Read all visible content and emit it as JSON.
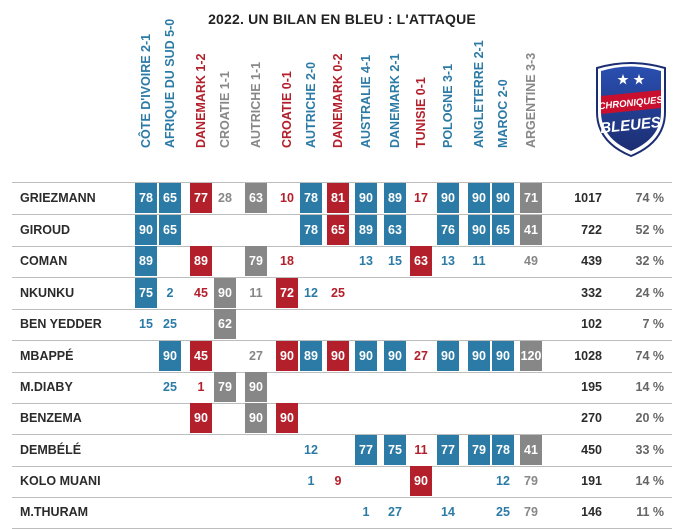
{
  "title": "2022. UN BILAN EN BLEU : L'ATTAQUE",
  "colors": {
    "win": "#2c7ba6",
    "loss": "#b3202b",
    "draw": "#878787",
    "text_dark": "#2b2b2b",
    "pct_text": "#666666"
  },
  "logo": {
    "line1": "CHRONIQUES",
    "line2": "BLEUES",
    "star_icon": "star-icon",
    "colors": {
      "dark": "#1c2e73",
      "mid": "#2a4fb0",
      "red": "#c8102e"
    }
  },
  "chart_data": {
    "type": "table",
    "title": "2022. UN BILAN EN BLEU : L'ATTAQUE",
    "matches": [
      {
        "label": "CÔTE D'IVOIRE 2-1",
        "result": "win"
      },
      {
        "label": "AFRIQUE DU SUD 5-0",
        "result": "win"
      },
      {
        "label": "DANEMARK 1-2",
        "result": "loss"
      },
      {
        "label": "CROATIE 1-1",
        "result": "draw"
      },
      {
        "label": "AUTRICHE 1-1",
        "result": "draw"
      },
      {
        "label": "CROATIE 0-1",
        "result": "loss"
      },
      {
        "label": "AUTRICHE 2-0",
        "result": "win"
      },
      {
        "label": "DANEMARK 0-2",
        "result": "loss"
      },
      {
        "label": "AUSTRALIE 4-1",
        "result": "win"
      },
      {
        "label": "DANEMARK 2-1",
        "result": "win"
      },
      {
        "label": "TUNISIE 0-1",
        "result": "loss"
      },
      {
        "label": "POLOGNE 3-1",
        "result": "win"
      },
      {
        "label": "ANGLETERRE 2-1",
        "result": "win"
      },
      {
        "label": "MAROC 2-0",
        "result": "win"
      },
      {
        "label": "ARGENTINE 3-3",
        "result": "draw"
      }
    ],
    "players": [
      {
        "name": "GRIEZMANN",
        "minutes": [
          78,
          65,
          77,
          28,
          63,
          10,
          78,
          81,
          90,
          89,
          17,
          90,
          90,
          90,
          71
        ],
        "starts": [
          1,
          1,
          1,
          0,
          1,
          0,
          1,
          1,
          1,
          1,
          0,
          1,
          1,
          1,
          1
        ],
        "total": "1017",
        "pct": "74 %"
      },
      {
        "name": "GIROUD",
        "minutes": [
          90,
          65,
          null,
          null,
          null,
          null,
          78,
          65,
          89,
          63,
          null,
          76,
          90,
          65,
          41
        ],
        "starts": [
          1,
          1,
          0,
          0,
          0,
          0,
          1,
          1,
          1,
          1,
          0,
          1,
          1,
          1,
          1
        ],
        "total": "722",
        "pct": "52 %"
      },
      {
        "name": "COMAN",
        "minutes": [
          89,
          null,
          89,
          null,
          79,
          18,
          null,
          null,
          13,
          15,
          63,
          13,
          11,
          null,
          49
        ],
        "starts": [
          1,
          0,
          1,
          0,
          1,
          0,
          0,
          0,
          0,
          0,
          1,
          0,
          0,
          0,
          0
        ],
        "total": "439",
        "pct": "32 %"
      },
      {
        "name": "NKUNKU",
        "minutes": [
          75,
          2,
          45,
          90,
          11,
          72,
          12,
          25,
          null,
          null,
          null,
          null,
          null,
          null,
          null
        ],
        "starts": [
          1,
          0,
          0,
          1,
          0,
          1,
          0,
          0,
          0,
          0,
          0,
          0,
          0,
          0,
          0
        ],
        "total": "332",
        "pct": "24 %"
      },
      {
        "name": "BEN YEDDER",
        "minutes": [
          15,
          25,
          null,
          62,
          null,
          null,
          null,
          null,
          null,
          null,
          null,
          null,
          null,
          null,
          null
        ],
        "starts": [
          0,
          0,
          0,
          1,
          0,
          0,
          0,
          0,
          0,
          0,
          0,
          0,
          0,
          0,
          0
        ],
        "total": "102",
        "pct": "7 %"
      },
      {
        "name": "MBAPPÉ",
        "minutes": [
          null,
          90,
          45,
          null,
          27,
          90,
          89,
          90,
          90,
          90,
          27,
          90,
          90,
          90,
          120
        ],
        "starts": [
          0,
          1,
          1,
          0,
          0,
          1,
          1,
          1,
          1,
          1,
          0,
          1,
          1,
          1,
          1
        ],
        "total": "1028",
        "pct": "74 %"
      },
      {
        "name": "M.DIABY",
        "minutes": [
          null,
          25,
          1,
          79,
          90,
          null,
          null,
          null,
          null,
          null,
          null,
          null,
          null,
          null,
          null
        ],
        "starts": [
          0,
          0,
          0,
          1,
          1,
          0,
          0,
          0,
          0,
          0,
          0,
          0,
          0,
          0,
          0
        ],
        "total": "195",
        "pct": "14 %"
      },
      {
        "name": "BENZEMA",
        "minutes": [
          null,
          null,
          90,
          null,
          90,
          90,
          null,
          null,
          null,
          null,
          null,
          null,
          null,
          null,
          null
        ],
        "starts": [
          0,
          0,
          1,
          0,
          1,
          1,
          0,
          0,
          0,
          0,
          0,
          0,
          0,
          0,
          0
        ],
        "total": "270",
        "pct": "20 %"
      },
      {
        "name": "DEMBÉLÉ",
        "minutes": [
          null,
          null,
          null,
          null,
          null,
          null,
          12,
          null,
          77,
          75,
          11,
          77,
          79,
          78,
          41
        ],
        "starts": [
          0,
          0,
          0,
          0,
          0,
          0,
          0,
          0,
          1,
          1,
          0,
          1,
          1,
          1,
          1
        ],
        "total": "450",
        "pct": "33 %"
      },
      {
        "name": "KOLO MUANI",
        "minutes": [
          null,
          null,
          null,
          null,
          null,
          null,
          1,
          9,
          null,
          null,
          90,
          null,
          null,
          12,
          79
        ],
        "starts": [
          0,
          0,
          0,
          0,
          0,
          0,
          0,
          0,
          0,
          0,
          1,
          0,
          0,
          0,
          0
        ],
        "total": "191",
        "pct": "14 %"
      },
      {
        "name": "M.THURAM",
        "minutes": [
          null,
          null,
          null,
          null,
          null,
          null,
          null,
          null,
          1,
          27,
          null,
          14,
          null,
          25,
          79
        ],
        "starts": [
          0,
          0,
          0,
          0,
          0,
          0,
          0,
          0,
          0,
          0,
          0,
          0,
          0,
          0,
          0
        ],
        "total": "146",
        "pct": "11 %"
      }
    ]
  }
}
